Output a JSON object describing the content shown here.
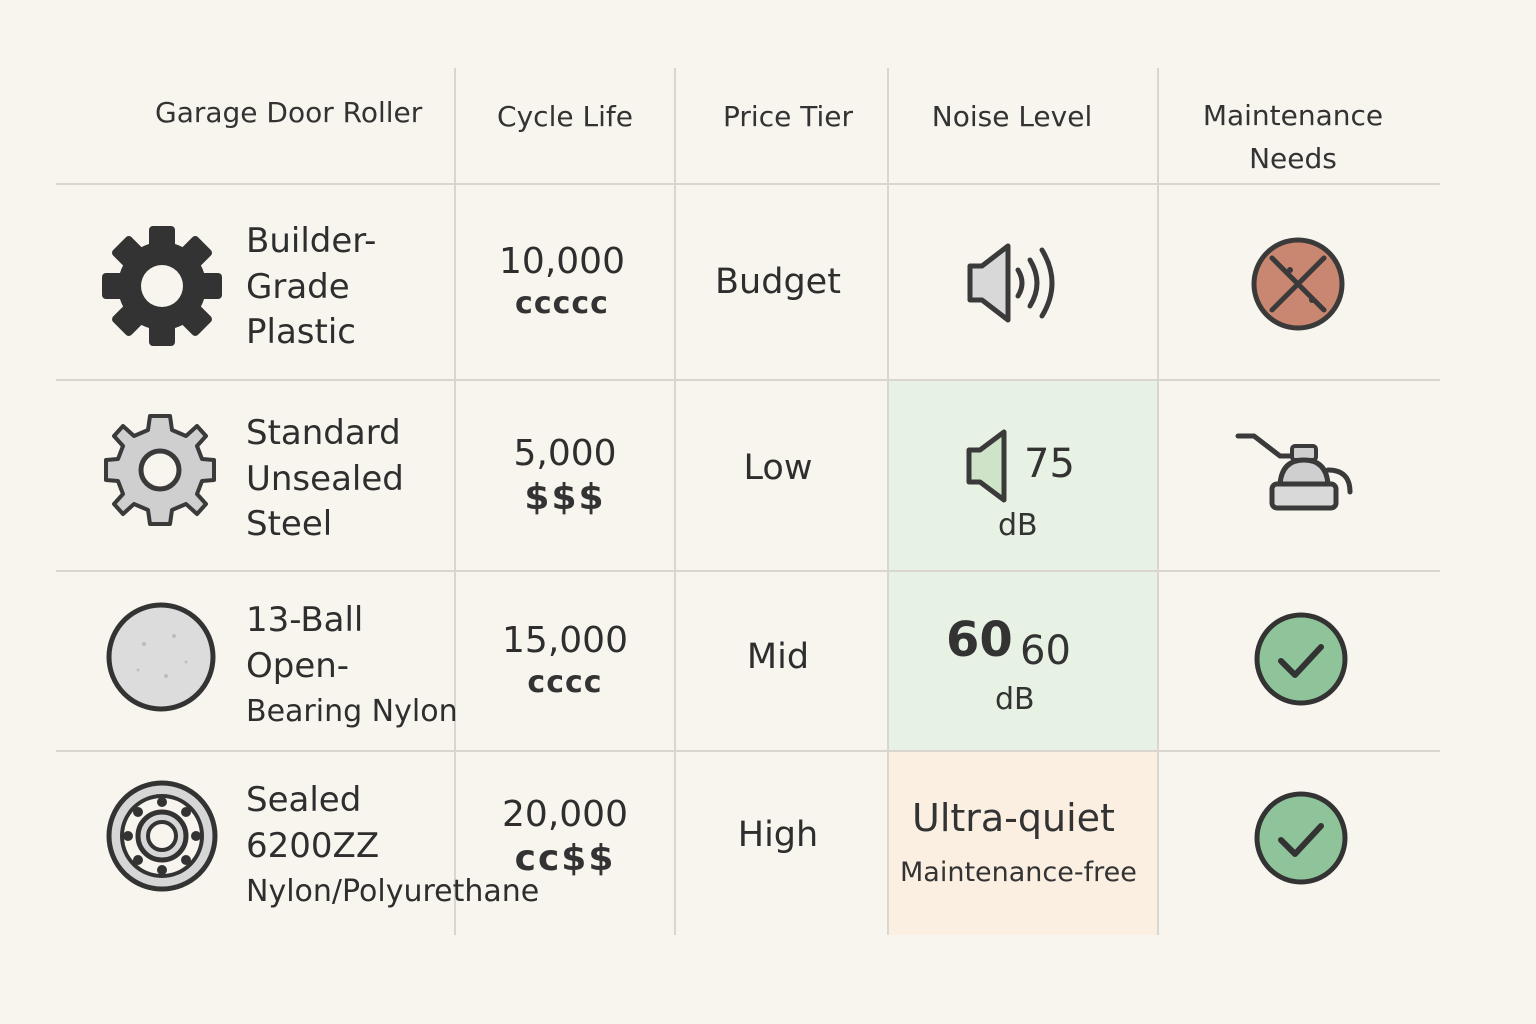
{
  "headers": {
    "type": "Garage Door Roller",
    "cycle_life": "Cycle Life",
    "price_tier": "Price Tier",
    "noise_level": "Noise Level",
    "maintenance_line1": "Maintenance",
    "maintenance_line2": "Needs"
  },
  "rows": [
    {
      "name_lines": [
        "Builder-",
        "Grade",
        "Plastic"
      ],
      "type_icon": "gear-dark-icon",
      "cycle_life": "10,000",
      "cycle_symbols": "ccccc",
      "price_tier": "Budget",
      "noise_icon": "speaker-loud-icon",
      "maintenance_icon": "no-maintenance-crossed-icon"
    },
    {
      "name_lines": [
        "Standard",
        "Unsealed",
        "Steel"
      ],
      "type_icon": "gear-light-icon",
      "cycle_life": "5,000",
      "cycle_symbols": "$$$",
      "price_tier": "Low",
      "noise_icon": "speaker-icon",
      "noise_value": "75",
      "noise_unit": "dB",
      "maintenance_icon": "oil-can-icon"
    },
    {
      "name_lines": [
        "13-Ball",
        "Open-",
        "Bearing Nylon"
      ],
      "type_icon": "nylon-wheel-icon",
      "cycle_life": "15,000",
      "cycle_symbols": "cccc",
      "price_tier": "Mid",
      "noise_value_big": "60",
      "noise_value": "60",
      "noise_unit": "dB",
      "maintenance_icon": "check-circle-icon"
    },
    {
      "name_lines": [
        "Sealed",
        "6200ZZ",
        "Nylon/Polyurethane"
      ],
      "type_icon": "sealed-bearing-icon",
      "cycle_life": "20,000",
      "cycle_symbols": "cc$$",
      "price_tier": "High",
      "noise_text": "Ultra-quiet",
      "noise_sub": "Maintenance-free",
      "maintenance_icon": "check-circle-icon"
    }
  ],
  "colors": {
    "background": "#f8f5ee",
    "grid": "#d9d6cf",
    "highlight_green": "#e8f2e4",
    "highlight_peach": "#fbefe2",
    "check_fill": "#8fc49a",
    "cross_fill": "#c98670"
  }
}
